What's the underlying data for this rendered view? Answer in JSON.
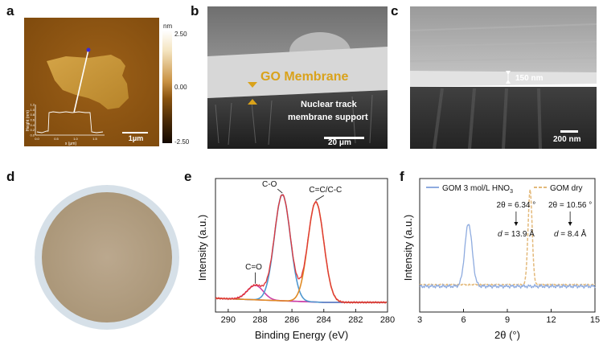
{
  "panels": {
    "a": {
      "label": "a",
      "colorbar": {
        "unit": "nm",
        "max": "2.50",
        "mid": "0.00",
        "min": "-2.50"
      },
      "scalebar": "1μm",
      "inset": {
        "ylabel": "Height (nm)",
        "xlabel": "x (μm)",
        "yticks": [
          "1.2",
          "1.0",
          "0.8",
          "0.6",
          "0.4",
          "0.2",
          "0.0"
        ],
        "xticks": [
          "0.0",
          "0.5",
          "1.0",
          "1.5"
        ]
      }
    },
    "b": {
      "label": "b",
      "title": "GO Membrane",
      "support_line1": "Nuclear track",
      "support_line2": "membrane support",
      "scalebar": "20 μm"
    },
    "c": {
      "label": "c",
      "thickness": "150 nm",
      "scalebar": "200 nm"
    },
    "d": {
      "label": "d"
    },
    "e": {
      "label": "e"
    },
    "f": {
      "label": "f"
    }
  },
  "chart_data": [
    {
      "id": "xps",
      "type": "line",
      "xlabel": "Binding Energy (eV)",
      "ylabel": "Intensity (a.u.)",
      "xlim": [
        290.8,
        280
      ],
      "x_reversed": true,
      "xticks": [
        290,
        288,
        286,
        284,
        282,
        280
      ],
      "peaks": [
        {
          "name": "C=O",
          "center": 288.3,
          "height": 0.12,
          "color": "#cc3fa6"
        },
        {
          "name": "C-O",
          "center": 286.6,
          "height": 0.88,
          "color": "#4f97cf"
        },
        {
          "name": "C=C/C-C",
          "center": 284.5,
          "height": 0.83,
          "color": "#e08a24"
        }
      ],
      "annotations": [
        "C-O",
        "C=C/C-C",
        "C=O"
      ],
      "series": [
        {
          "name": "Measured",
          "color": "#e0363a"
        },
        {
          "name": "Fit C=O",
          "color": "#cc3fa6"
        },
        {
          "name": "Fit C-O",
          "color": "#4f97cf"
        },
        {
          "name": "Fit C=C/C-C",
          "color": "#e08a24"
        },
        {
          "name": "Background",
          "color": "#c03ab4"
        }
      ]
    },
    {
      "id": "xrd",
      "type": "line",
      "xlabel": "2θ (°)",
      "ylabel": "Intensity (a.u.)",
      "xlim": [
        3,
        15
      ],
      "xticks": [
        3,
        6,
        9,
        12,
        15
      ],
      "legend_position": "top",
      "series": [
        {
          "name": "GOM 3 mol/L HNO3",
          "style": "solid",
          "color": "#8eabdf",
          "peak_2theta": 6.34,
          "d_spacing_A": 13.9
        },
        {
          "name": "GOM dry",
          "style": "dashed",
          "color": "#e3b97a",
          "peak_2theta": 10.56,
          "d_spacing_A": 8.4
        }
      ],
      "annotations": [
        {
          "theta_text": "2θ = 6.34 °",
          "d_label": "d",
          "d_value": " = 13.9 Å"
        },
        {
          "theta_text": "2θ = 10.56 °",
          "d_label": "d",
          "d_value": " = 8.4 Å"
        }
      ],
      "legend": {
        "wet_prefix": "GOM 3 mol/L HNO",
        "wet_sub": "3",
        "dry": "GOM dry"
      }
    }
  ],
  "colors": {
    "afm_bg": "#8a5410",
    "sem_gray": "#7b7b7b",
    "disc": "#b6a38a",
    "go_label": "#d9a21b"
  }
}
